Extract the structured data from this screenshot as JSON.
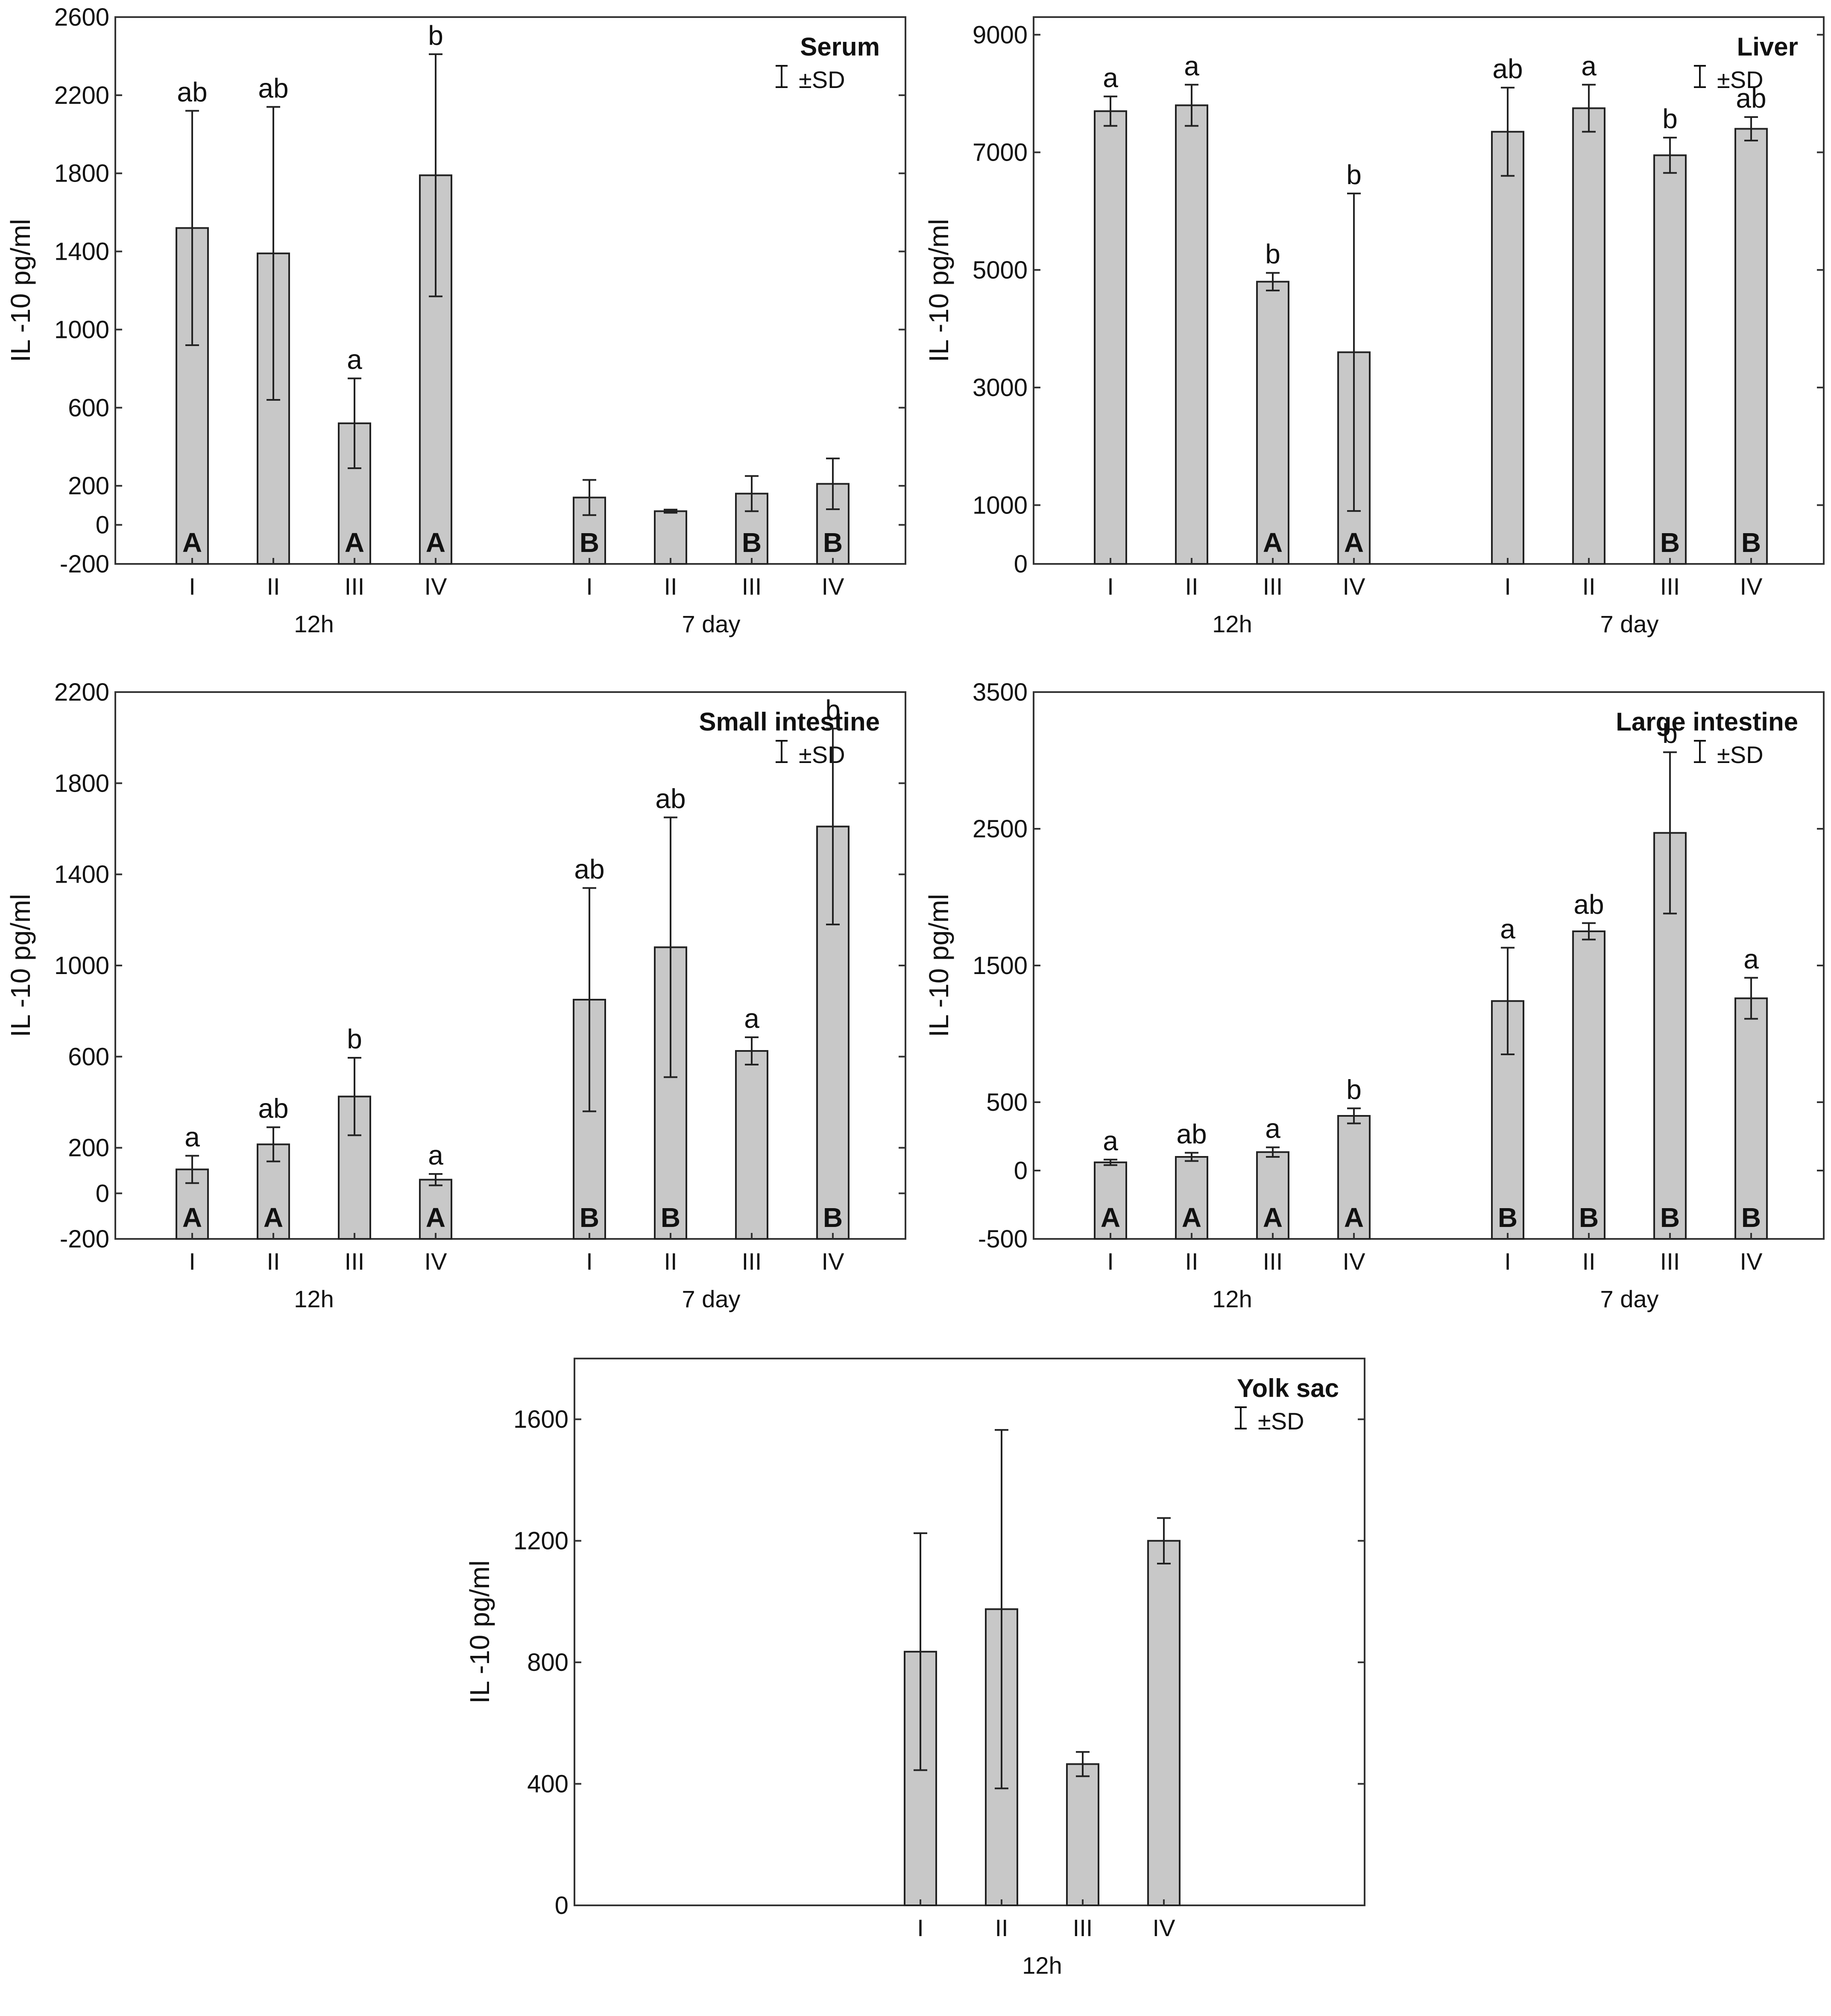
{
  "figure": {
    "ylabel": "IL -10 pg/ml",
    "legend_text": "±SD",
    "bar_color": "#c8c8c8",
    "axis_color": "#333333"
  },
  "chart_data": [
    {
      "id": "serum",
      "type": "bar",
      "title": "Serum",
      "ylabel": "IL -10 pg/ml",
      "ylim": [
        -200,
        2600
      ],
      "yticks": [
        2600,
        2200,
        1800,
        1400,
        1000,
        600,
        200,
        0,
        -200
      ],
      "groups": [
        {
          "name": "12h",
          "categories": [
            "I",
            "II",
            "III",
            "IV"
          ],
          "values": [
            1520,
            1390,
            520,
            1790
          ],
          "errors": [
            600,
            750,
            230,
            620
          ],
          "top_labels": [
            "ab",
            "ab",
            "a",
            "b"
          ],
          "bottom_labels": [
            "A",
            "",
            "A",
            "A"
          ]
        },
        {
          "name": "7 day",
          "categories": [
            "I",
            "II",
            "III",
            "IV"
          ],
          "values": [
            140,
            70,
            160,
            210
          ],
          "errors": [
            90,
            8,
            90,
            130
          ],
          "top_labels": [
            "",
            "",
            "",
            ""
          ],
          "bottom_labels": [
            "B",
            "",
            "B",
            "B"
          ]
        }
      ]
    },
    {
      "id": "liver",
      "type": "bar",
      "title": "Liver",
      "ylabel": "IL -10 pg/ml",
      "ylim": [
        0,
        9300
      ],
      "yticks": [
        9000,
        7000,
        5000,
        3000,
        1000,
        0
      ],
      "groups": [
        {
          "name": "12h",
          "categories": [
            "I",
            "II",
            "III",
            "IV"
          ],
          "values": [
            7700,
            7800,
            4800,
            3600
          ],
          "errors": [
            250,
            350,
            150,
            2700
          ],
          "top_labels": [
            "a",
            "a",
            "b",
            "b"
          ],
          "bottom_labels": [
            "",
            "",
            "A",
            "A"
          ]
        },
        {
          "name": "7 day",
          "categories": [
            "I",
            "II",
            "III",
            "IV"
          ],
          "values": [
            7350,
            7750,
            6950,
            7400
          ],
          "errors": [
            750,
            400,
            300,
            200
          ],
          "top_labels": [
            "ab",
            "a",
            "b",
            "ab"
          ],
          "bottom_labels": [
            "",
            "",
            "B",
            "B"
          ]
        }
      ]
    },
    {
      "id": "small-intestine",
      "type": "bar",
      "title": "Small intestine",
      "ylabel": "IL -10 pg/ml",
      "ylim": [
        -200,
        2200
      ],
      "yticks": [
        2200,
        1800,
        1400,
        1000,
        600,
        200,
        0,
        -200
      ],
      "groups": [
        {
          "name": "12h",
          "categories": [
            "I",
            "II",
            "III",
            "IV"
          ],
          "values": [
            105,
            215,
            425,
            60
          ],
          "errors": [
            60,
            75,
            170,
            25
          ],
          "top_labels": [
            "a",
            "ab",
            "b",
            "a"
          ],
          "bottom_labels": [
            "A",
            "A",
            "",
            "A"
          ]
        },
        {
          "name": "7 day",
          "categories": [
            "I",
            "II",
            "III",
            "IV"
          ],
          "values": [
            850,
            1080,
            625,
            1610
          ],
          "errors": [
            490,
            570,
            60,
            430
          ],
          "top_labels": [
            "ab",
            "ab",
            "a",
            "b"
          ],
          "bottom_labels": [
            "B",
            "B",
            "",
            "B"
          ]
        }
      ]
    },
    {
      "id": "large-intestine",
      "type": "bar",
      "title": "Large intestine",
      "ylabel": "IL -10 pg/ml",
      "ylim": [
        -500,
        3500
      ],
      "yticks": [
        3500,
        2500,
        1500,
        500,
        0,
        -500
      ],
      "groups": [
        {
          "name": "12h",
          "categories": [
            "I",
            "II",
            "III",
            "IV"
          ],
          "values": [
            60,
            100,
            135,
            400
          ],
          "errors": [
            20,
            30,
            35,
            55
          ],
          "top_labels": [
            "a",
            "ab",
            "a",
            "b"
          ],
          "bottom_labels": [
            "A",
            "A",
            "A",
            "A"
          ]
        },
        {
          "name": "7 day",
          "categories": [
            "I",
            "II",
            "III",
            "IV"
          ],
          "values": [
            1240,
            1750,
            2470,
            1260
          ],
          "errors": [
            390,
            60,
            590,
            150
          ],
          "top_labels": [
            "a",
            "ab",
            "b",
            "a"
          ],
          "bottom_labels": [
            "B",
            "B",
            "B",
            "B"
          ]
        }
      ]
    },
    {
      "id": "yolk-sac",
      "type": "bar",
      "title": "Yolk sac",
      "ylabel": "IL -10 pg/ml",
      "ylim": [
        0,
        1800
      ],
      "yticks": [
        1600,
        1200,
        800,
        400,
        0
      ],
      "groups": [
        {
          "name": "12h",
          "categories": [
            "I",
            "II",
            "III",
            "IV"
          ],
          "values": [
            835,
            975,
            465,
            1200
          ],
          "errors": [
            390,
            590,
            40,
            75
          ],
          "top_labels": [
            "",
            "",
            "",
            ""
          ],
          "bottom_labels": [
            "",
            "",
            "",
            ""
          ]
        }
      ]
    }
  ]
}
